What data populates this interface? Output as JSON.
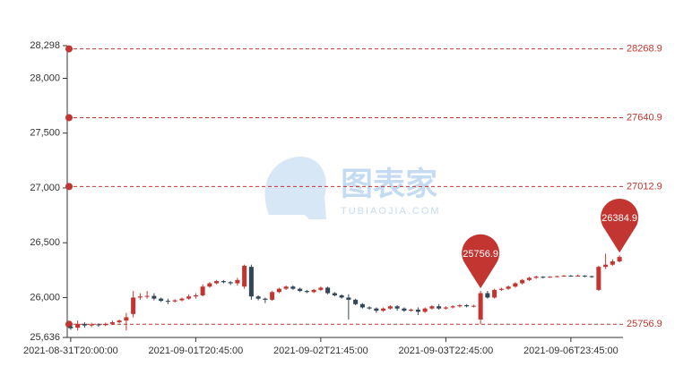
{
  "chart_data": {
    "type": "candlestick",
    "categories": [
      "2021-08-31T20:00:00",
      null,
      null,
      null,
      null,
      null,
      null,
      null,
      null,
      null,
      null,
      null,
      null,
      null,
      null,
      null,
      null,
      null,
      "2021-09-01T20:45:00",
      null,
      null,
      null,
      null,
      null,
      null,
      null,
      null,
      null,
      null,
      null,
      null,
      null,
      null,
      null,
      null,
      null,
      "2021-09-02T21:45:00",
      null,
      null,
      null,
      null,
      null,
      null,
      null,
      null,
      null,
      null,
      null,
      null,
      null,
      null,
      null,
      null,
      null,
      "2021-09-03T22:45:00",
      null,
      null,
      null,
      null,
      null,
      null,
      null,
      null,
      null,
      null,
      null,
      null,
      null,
      null,
      null,
      null,
      null,
      "2021-09-06T23:45:00",
      null,
      null,
      null,
      null,
      null,
      null,
      null
    ],
    "ohlc": [
      [
        25735,
        25720,
        25705,
        25745
      ],
      [
        25725,
        25760,
        25700,
        25790
      ],
      [
        25760,
        25745,
        25725,
        25775
      ],
      [
        25745,
        25755,
        25730,
        25770
      ],
      [
        25755,
        25748,
        25735,
        25765
      ],
      [
        25748,
        25760,
        25740,
        25770
      ],
      [
        25760,
        25775,
        25750,
        25790
      ],
      [
        25775,
        25790,
        25765,
        25800
      ],
      [
        25790,
        25820,
        25700,
        25860
      ],
      [
        25850,
        26000,
        25820,
        26060
      ],
      [
        26000,
        26010,
        25980,
        26040
      ],
      [
        26010,
        26015,
        25990,
        26060
      ],
      [
        26015,
        25990,
        25975,
        26040
      ],
      [
        25990,
        25970,
        25960,
        26000
      ],
      [
        25970,
        25965,
        25940,
        25990
      ],
      [
        25965,
        25975,
        25955,
        25985
      ],
      [
        25975,
        25990,
        25965,
        26000
      ],
      [
        25990,
        26010,
        25980,
        26030
      ],
      [
        26010,
        26020,
        25990,
        26040
      ],
      [
        26020,
        26100,
        26010,
        26120
      ],
      [
        26100,
        26130,
        26090,
        26140
      ],
      [
        26130,
        26150,
        26120,
        26160
      ],
      [
        26150,
        26140,
        26130,
        26160
      ],
      [
        26140,
        26130,
        26115,
        26150
      ],
      [
        26130,
        26160,
        26110,
        26180
      ],
      [
        26100,
        26290,
        26080,
        26300
      ],
      [
        26280,
        26010,
        25980,
        26300
      ],
      [
        26010,
        25990,
        25975,
        26020
      ],
      [
        25990,
        25980,
        25950,
        26000
      ],
      [
        25980,
        26050,
        25970,
        26060
      ],
      [
        26050,
        26080,
        26040,
        26090
      ],
      [
        26080,
        26100,
        26070,
        26110
      ],
      [
        26100,
        26080,
        26070,
        26110
      ],
      [
        26080,
        26060,
        26050,
        26090
      ],
      [
        26060,
        26050,
        26040,
        26070
      ],
      [
        26050,
        26070,
        26040,
        26080
      ],
      [
        26070,
        26090,
        26060,
        26100
      ],
      [
        26090,
        26040,
        26030,
        26100
      ],
      [
        26040,
        26020,
        26010,
        26050
      ],
      [
        26020,
        26000,
        25990,
        26030
      ],
      [
        26000,
        25980,
        25800,
        26030
      ],
      [
        25980,
        25940,
        25930,
        25990
      ],
      [
        25940,
        25910,
        25900,
        25950
      ],
      [
        25910,
        25900,
        25890,
        25920
      ],
      [
        25900,
        25880,
        25860,
        25910
      ],
      [
        25880,
        25900,
        25870,
        25910
      ],
      [
        25900,
        25920,
        25890,
        25930
      ],
      [
        25920,
        25900,
        25880,
        25930
      ],
      [
        25900,
        25880,
        25870,
        25910
      ],
      [
        25880,
        25890,
        25870,
        25900
      ],
      [
        25890,
        25870,
        25840,
        25910
      ],
      [
        25870,
        25900,
        25860,
        25910
      ],
      [
        25900,
        25920,
        25890,
        25930
      ],
      [
        25920,
        25900,
        25890,
        25940
      ],
      [
        25900,
        25910,
        25890,
        25920
      ],
      [
        25910,
        25920,
        25900,
        25930
      ],
      [
        25920,
        25930,
        25910,
        25940
      ],
      [
        25930,
        25920,
        25910,
        25940
      ],
      [
        25920,
        25925,
        25910,
        25935
      ],
      [
        25800,
        26040,
        25756.9,
        26060
      ],
      [
        26040,
        26000,
        25990,
        26060
      ],
      [
        26000,
        26070,
        25990,
        26080
      ],
      [
        26070,
        26080,
        26060,
        26090
      ],
      [
        26080,
        26100,
        26070,
        26110
      ],
      [
        26100,
        26130,
        26090,
        26140
      ],
      [
        26130,
        26160,
        26120,
        26170
      ],
      [
        26160,
        26180,
        26150,
        26190
      ],
      [
        26180,
        26190,
        26170,
        26200
      ],
      [
        26190,
        26185,
        26175,
        26195
      ],
      [
        26185,
        26190,
        26180,
        26195
      ],
      [
        26190,
        26195,
        26185,
        26200
      ],
      [
        26195,
        26200,
        26190,
        26205
      ],
      [
        26200,
        26195,
        26190,
        26205
      ],
      [
        26195,
        26200,
        26190,
        26210
      ],
      [
        26200,
        26195,
        26185,
        26205
      ],
      [
        26195,
        26190,
        26180,
        26200
      ],
      [
        26070,
        26280,
        26060,
        26290
      ],
      [
        26280,
        26300,
        26260,
        26400
      ],
      [
        26300,
        26330,
        26290,
        26350
      ],
      [
        26330,
        26370,
        26320,
        26384.9
      ]
    ],
    "up_color": "#c23531",
    "down_color": "#314656",
    "ylim": [
      25636,
      28298
    ],
    "yticks": [
      {
        "value": 25636,
        "label": "25,636"
      },
      {
        "value": 26000,
        "label": "26,000"
      },
      {
        "value": 26500,
        "label": "26,500"
      },
      {
        "value": 27000,
        "label": "27,000"
      },
      {
        "value": 27500,
        "label": "27,500"
      },
      {
        "value": 28000,
        "label": "28,000"
      },
      {
        "value": 28298,
        "label": "28,298"
      }
    ],
    "mark_lines": [
      28268.9,
      27640.9,
      27012.9,
      25756.9
    ],
    "mark_points": [
      {
        "index": 59,
        "value": 25756.9
      },
      {
        "index": 79,
        "value": 26384.9
      }
    ],
    "mark_color": "#c23531",
    "watermark": {
      "title": "图表家",
      "subtitle": "TUBIAOJIA.COM"
    }
  }
}
